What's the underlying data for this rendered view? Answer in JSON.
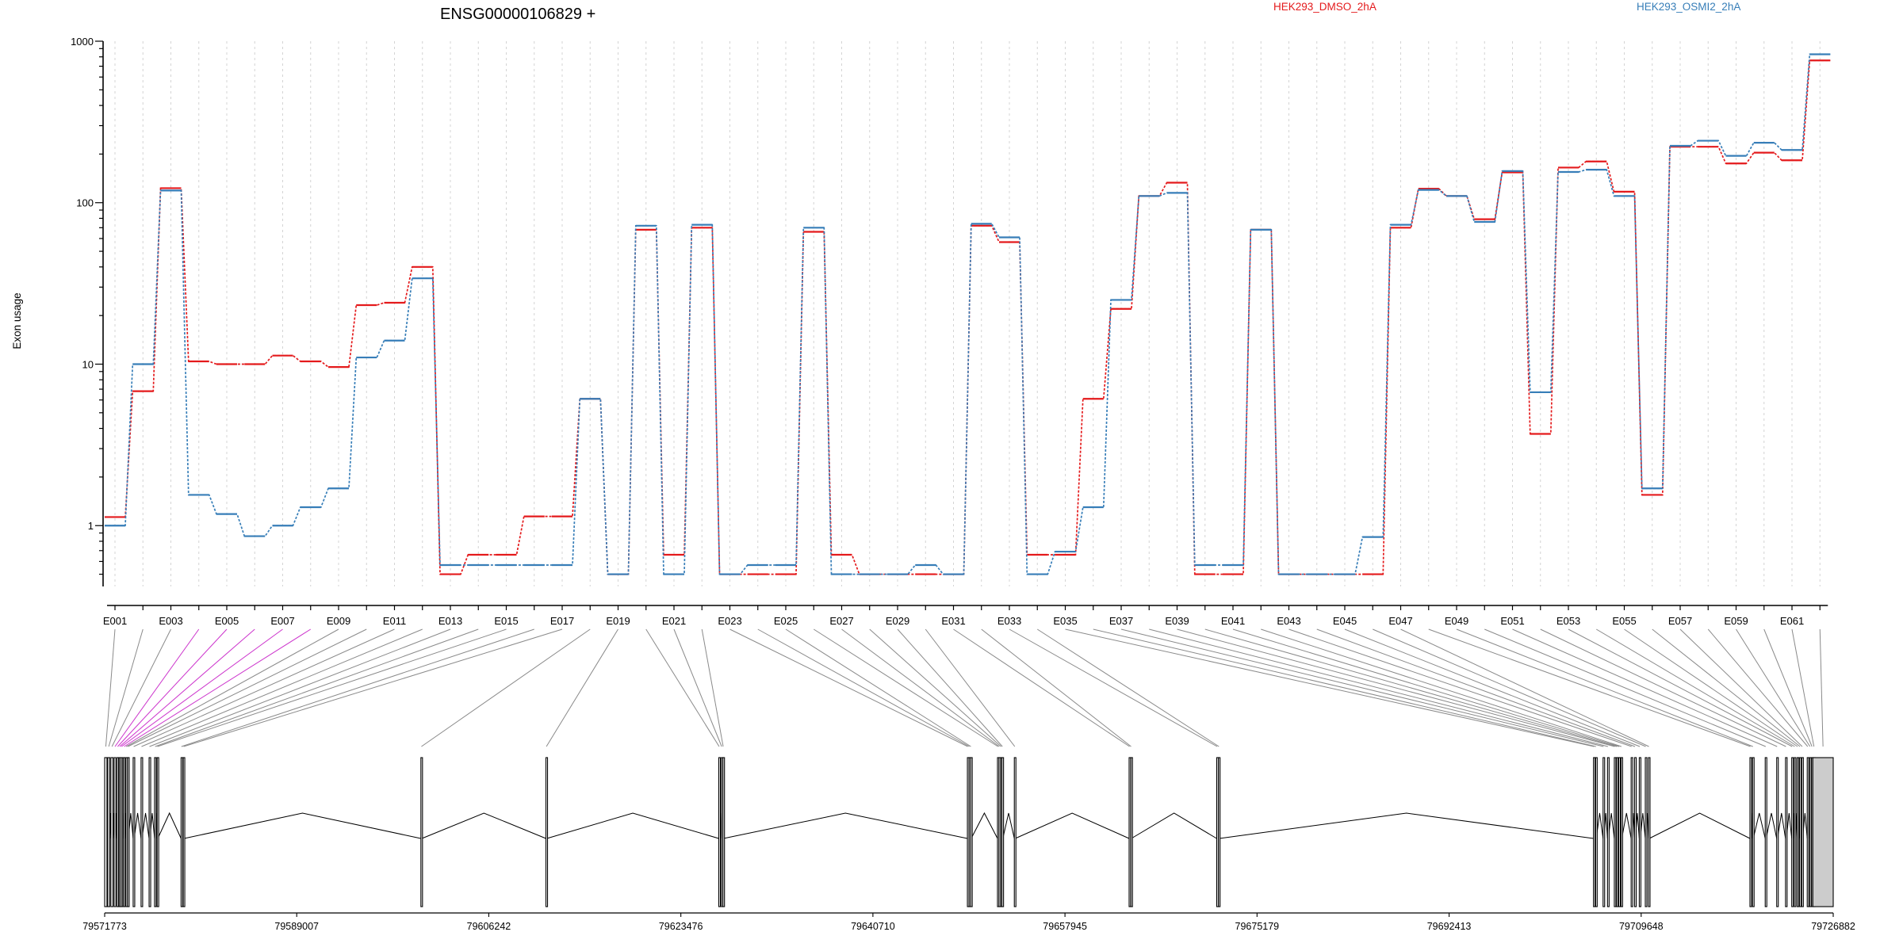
{
  "colors": {
    "axis": "#000000",
    "grid": "#d4d4d4",
    "connector": "#8a8a8a",
    "connector_highlight": "#cc33cc",
    "last_exon_fill": "#cccccc"
  },
  "chart_data": {
    "type": "line",
    "title": "ENSG00000106829 +",
    "ylabel": "Exon usage",
    "yscale": "log",
    "ylim": [
      0.42,
      1000
    ],
    "ytick_labels": [
      "1",
      "10",
      "100",
      "1000"
    ],
    "ytick_values": [
      1,
      10,
      100,
      1000
    ],
    "legend_position": "top",
    "categories": [
      "E001",
      "E002",
      "E003",
      "E004",
      "E005",
      "E006",
      "E007",
      "E008",
      "E009",
      "E010",
      "E011",
      "E012",
      "E013",
      "E014",
      "E015",
      "E016",
      "E017",
      "E018",
      "E019",
      "E020",
      "E021",
      "E022",
      "E023",
      "E024",
      "E025",
      "E026",
      "E027",
      "E028",
      "E029",
      "E030",
      "E031",
      "E032",
      "E033",
      "E034",
      "E035",
      "E036",
      "E037",
      "E038",
      "E039",
      "E040",
      "E041",
      "E042",
      "E043",
      "E044",
      "E045",
      "E046",
      "E047",
      "E048",
      "E049",
      "E050",
      "E051",
      "E052",
      "E053",
      "E054",
      "E055",
      "E056",
      "E057",
      "E058",
      "E059",
      "E060",
      "E061",
      "E062"
    ],
    "xtick_labels": [
      "E001",
      "E003",
      "E005",
      "E007",
      "E009",
      "E011",
      "E013",
      "E015",
      "E017",
      "E019",
      "E021",
      "E023",
      "E025",
      "E027",
      "E029",
      "E031",
      "E033",
      "E035",
      "E037",
      "E039",
      "E041",
      "E043",
      "E045",
      "E047",
      "E049",
      "E051",
      "E053",
      "E055",
      "E057",
      "E059",
      "E061"
    ],
    "series": [
      {
        "name": "HEK293_DMSO_2hA",
        "color": "#e41a1c",
        "values": [
          1.13,
          6.8,
          123,
          10.4,
          10.0,
          10.0,
          11.3,
          10.4,
          9.6,
          23.2,
          24,
          40,
          0.5,
          0.66,
          0.66,
          1.14,
          1.14,
          6.1,
          0.5,
          68,
          0.66,
          70,
          0.5,
          0.5,
          0.5,
          66,
          0.66,
          0.5,
          0.5,
          0.5,
          0.5,
          72,
          57,
          0.66,
          0.66,
          6.1,
          22,
          110,
          133,
          0.5,
          0.5,
          68,
          0.5,
          0.5,
          0.5,
          0.5,
          70,
          122,
          110,
          79,
          154,
          3.7,
          165,
          180,
          117,
          1.55,
          222,
          222,
          175,
          204,
          183,
          760
        ]
      },
      {
        "name": "HEK293_OSMI2_2hA",
        "color": "#377eb8",
        "values": [
          1.0,
          10.0,
          119,
          1.55,
          1.18,
          0.86,
          1.0,
          1.3,
          1.7,
          11.0,
          14,
          34,
          0.57,
          0.57,
          0.57,
          0.57,
          0.57,
          6.1,
          0.5,
          72,
          0.5,
          73,
          0.5,
          0.57,
          0.57,
          70,
          0.5,
          0.5,
          0.5,
          0.57,
          0.5,
          74,
          61,
          0.5,
          0.69,
          1.3,
          25,
          110,
          115,
          0.57,
          0.57,
          68,
          0.5,
          0.5,
          0.5,
          0.85,
          73,
          120,
          110,
          76,
          157,
          6.7,
          155,
          160,
          110,
          1.7,
          225,
          242,
          195,
          235,
          212,
          830
        ]
      }
    ]
  },
  "gene_model": {
    "coordinate_labels": [
      "79571773",
      "79589007",
      "79606242",
      "79623476",
      "79640710",
      "79657945",
      "79675179",
      "79692413",
      "79709648",
      "79726882"
    ],
    "coordinate_values": [
      79571773,
      79589007,
      79606242,
      79623476,
      79640710,
      79657945,
      79675179,
      79692413,
      79709648,
      79726882
    ],
    "exons": [
      [
        79571773,
        79571980
      ],
      [
        79572050,
        79572230
      ],
      [
        79572330,
        79572520
      ],
      [
        79572620,
        79572780
      ],
      [
        79572880,
        79573000
      ],
      [
        79573080,
        79573170
      ],
      [
        79573250,
        79573320
      ],
      [
        79573460,
        79573590
      ],
      [
        79573680,
        79573740
      ],
      [
        79573830,
        79573900
      ],
      [
        79574330,
        79574420
      ],
      [
        79575040,
        79575120
      ],
      [
        79575760,
        79575830
      ],
      [
        79576250,
        79576360
      ],
      [
        79576480,
        79576540
      ],
      [
        79578630,
        79578690
      ],
      [
        79578820,
        79578900
      ],
      [
        79600150,
        79600240
      ],
      [
        79611370,
        79611450
      ],
      [
        79626880,
        79626950
      ],
      [
        79627110,
        79627170
      ],
      [
        79627250,
        79627300
      ],
      [
        79649190,
        79649250
      ],
      [
        79649340,
        79649400
      ],
      [
        79649480,
        79649530
      ],
      [
        79651890,
        79651970
      ],
      [
        79652020,
        79652080
      ],
      [
        79652180,
        79652230
      ],
      [
        79652290,
        79652370
      ],
      [
        79653400,
        79653480
      ],
      [
        79663700,
        79663780
      ],
      [
        79663860,
        79663900
      ],
      [
        79671560,
        79671640
      ],
      [
        79671720,
        79671800
      ],
      [
        79705370,
        79705460
      ],
      [
        79705560,
        79705620
      ],
      [
        79706230,
        79706310
      ],
      [
        79706630,
        79706700
      ],
      [
        79707240,
        79707310
      ],
      [
        79707440,
        79707510
      ],
      [
        79707640,
        79707710
      ],
      [
        79707840,
        79707910
      ],
      [
        79708750,
        79708830
      ],
      [
        79709060,
        79709130
      ],
      [
        79709480,
        79709570
      ],
      [
        79710020,
        79710100
      ],
      [
        79710300,
        79710380
      ],
      [
        79719410,
        79719490
      ],
      [
        79719640,
        79719710
      ],
      [
        79720780,
        79720860
      ],
      [
        79721810,
        79721880
      ],
      [
        79722600,
        79722680
      ],
      [
        79723160,
        79723240
      ],
      [
        79723390,
        79723460
      ],
      [
        79723650,
        79723720
      ],
      [
        79723870,
        79723930
      ],
      [
        79724060,
        79724140
      ],
      [
        79724550,
        79724630
      ],
      [
        79724760,
        79724830
      ],
      [
        79724940,
        79725010
      ],
      [
        79725120,
        79725180
      ],
      [
        79725050,
        79726882
      ]
    ]
  }
}
